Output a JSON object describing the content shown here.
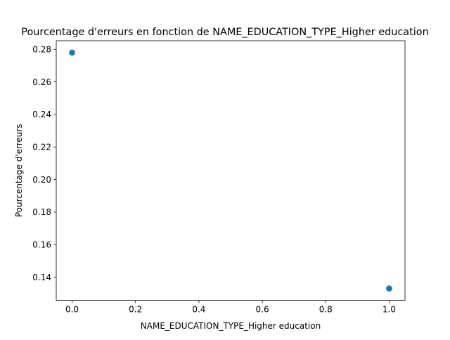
{
  "chart_data": {
    "type": "scatter",
    "title": "Pourcentage d'erreurs en fonction de NAME_EDUCATION_TYPE_Higher education",
    "xlabel": "NAME_EDUCATION_TYPE_Higher education",
    "ylabel": "Pourcentage d'erreurs",
    "xlim": [
      -0.05,
      1.05
    ],
    "ylim": [
      0.1257,
      0.2853
    ],
    "xticks": [
      0.0,
      0.2,
      0.4,
      0.6,
      0.8,
      1.0
    ],
    "xtick_labels": [
      "0.0",
      "0.2",
      "0.4",
      "0.6",
      "0.8",
      "1.0"
    ],
    "yticks": [
      0.14,
      0.16,
      0.18,
      0.2,
      0.22,
      0.24,
      0.26,
      0.28
    ],
    "ytick_labels": [
      "0.14",
      "0.16",
      "0.18",
      "0.20",
      "0.22",
      "0.24",
      "0.26",
      "0.28"
    ],
    "x": [
      0.0,
      1.0
    ],
    "y": [
      0.278,
      0.133
    ],
    "grid": false,
    "marker_color": "#1f77b4"
  }
}
